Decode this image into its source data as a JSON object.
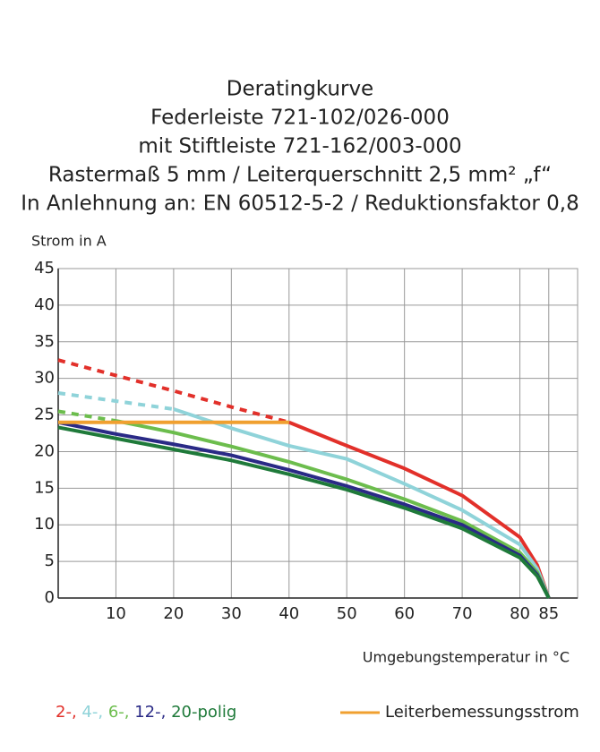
{
  "chart_data": {
    "type": "line",
    "title": [
      "Deratingkurve",
      "Federleiste 721-102/026-000",
      "mit Stiftleiste 721-162/003-000",
      "Rastermaß 5 mm / Leiterquerschnitt 2,5 mm² „f“",
      "In Anlehnung an: EN 60512-5-2 / Reduktionsfaktor 0,8"
    ],
    "ylabel": "Strom in A",
    "xlabel": "Umgebungstemperatur in °C",
    "x": [
      0,
      10,
      20,
      30,
      40,
      50,
      60,
      70,
      80,
      83,
      85
    ],
    "xlim": [
      0,
      90
    ],
    "xticks": [
      10,
      20,
      30,
      40,
      50,
      60,
      70,
      80,
      85
    ],
    "ylim": [
      0,
      45
    ],
    "yticks": [
      0,
      5,
      10,
      15,
      20,
      25,
      30,
      35,
      40,
      45
    ],
    "grid": true,
    "series": [
      {
        "name": "2-,",
        "color": "#e2302a",
        "legend_style": "text",
        "values": [
          null,
          null,
          null,
          null,
          24,
          20.8,
          17.7,
          14,
          8.3,
          4.5,
          0
        ],
        "dashed_values": [
          32.5,
          30.4,
          28.3,
          26.1,
          24,
          null,
          null,
          null,
          null,
          null,
          null
        ]
      },
      {
        "name": "4-,",
        "color": "#8fd3d9",
        "legend_style": "text",
        "values": [
          null,
          null,
          25.8,
          23.2,
          20.8,
          19,
          15.6,
          12,
          7.3,
          4,
          0
        ],
        "dashed_values": [
          28,
          26.9,
          25.8,
          null,
          null,
          null,
          null,
          null,
          null,
          null,
          null
        ]
      },
      {
        "name": "6-,",
        "color": "#6cbd4d",
        "legend_style": "text",
        "values": [
          null,
          24.2,
          22.6,
          20.7,
          18.6,
          16.2,
          13.5,
          10.5,
          6.2,
          3.5,
          0
        ],
        "dashed_values": [
          25.5,
          24.2,
          null,
          null,
          null,
          null,
          null,
          null,
          null,
          null,
          null
        ]
      },
      {
        "name": "12-,",
        "color": "#2a2a86",
        "legend_style": "text",
        "values": [
          24,
          22.4,
          21,
          19.5,
          17.5,
          15.3,
          12.8,
          10,
          5.8,
          3.2,
          0
        ]
      },
      {
        "name": "20-polig",
        "color": "#1f7a3a",
        "legend_style": "text",
        "values": [
          23.3,
          21.8,
          20.3,
          18.8,
          16.9,
          14.8,
          12.3,
          9.5,
          5.5,
          3,
          0
        ]
      },
      {
        "name": "Leiterbemessungsstrom",
        "color": "#f0a030",
        "legend_style": "line",
        "values": [
          24,
          24,
          24,
          24,
          24,
          null,
          null,
          null,
          null,
          null,
          null
        ]
      }
    ]
  }
}
